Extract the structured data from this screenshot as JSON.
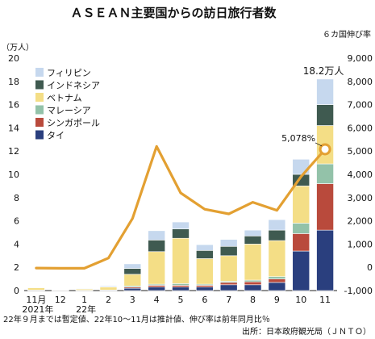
{
  "chart_data": {
    "type": "bar",
    "title": "ＡＳＥＡＮ主要国からの訪日旅行者数",
    "right_axis_title": "６カ国伸び率",
    "left_unit": "（万人）",
    "categories": [
      "11月",
      "12",
      "1",
      "2",
      "3",
      "4",
      "5",
      "6",
      "7",
      "8",
      "9",
      "10",
      "11"
    ],
    "category_sublabels": [
      "2021年",
      "",
      "22年",
      "",
      "",
      "",
      "",
      "",
      "",
      "",
      "",
      "",
      ""
    ],
    "stack_order": [
      "タイ",
      "シンガポール",
      "マレーシア",
      "ベトナム",
      "インドネシア",
      "フィリピン"
    ],
    "series": [
      {
        "name": "タイ",
        "color": "#2a3f7e",
        "values": [
          0.02,
          0.01,
          0.01,
          0.03,
          0.2,
          0.3,
          0.3,
          0.3,
          0.5,
          0.5,
          0.7,
          3.4,
          5.2
        ]
      },
      {
        "name": "シンガポール",
        "color": "#b94a3c",
        "values": [
          0.01,
          0.01,
          0.01,
          0.01,
          0.1,
          0.15,
          0.15,
          0.15,
          0.2,
          0.25,
          0.3,
          1.5,
          4.0
        ]
      },
      {
        "name": "マレーシア",
        "color": "#93c2a9",
        "values": [
          0.01,
          0.01,
          0.01,
          0.01,
          0.1,
          0.1,
          0.15,
          0.1,
          0.1,
          0.15,
          0.2,
          0.9,
          1.7
        ]
      },
      {
        "name": "ベトナム",
        "color": "#f4de86",
        "values": [
          0.2,
          0.03,
          0.1,
          0.25,
          1.0,
          2.8,
          3.9,
          2.2,
          2.2,
          3.1,
          3.1,
          3.2,
          3.3
        ]
      },
      {
        "name": "インドネシア",
        "color": "#3f5a50",
        "values": [
          0.02,
          0.02,
          0.02,
          0.03,
          0.5,
          1.0,
          0.8,
          0.7,
          0.8,
          0.7,
          0.9,
          1.0,
          1.8
        ]
      },
      {
        "name": "フィリピン",
        "color": "#c6d8ee",
        "values": [
          0.04,
          0.02,
          0.05,
          0.08,
          0.4,
          0.8,
          0.6,
          0.5,
          0.6,
          0.5,
          0.9,
          1.3,
          2.2
        ]
      }
    ],
    "line": {
      "name": "６カ国伸び率",
      "color": "#e3a032",
      "values": [
        -30,
        -40,
        -40,
        400,
        2100,
        5200,
        3200,
        2500,
        2300,
        2800,
        2450,
        3900,
        5078
      ]
    },
    "ylim_left": [
      0,
      20
    ],
    "yticks_left": [
      "0",
      "2",
      "4",
      "6",
      "8",
      "10",
      "12",
      "14",
      "16",
      "18",
      "20"
    ],
    "ylim_right": [
      -1000,
      9000
    ],
    "yticks_right": [
      "-1,000",
      "0",
      "1,000",
      "2,000",
      "3,000",
      "4,000",
      "5,000",
      "6,000",
      "7,000",
      "8,000",
      "9,000"
    ],
    "annotation_total": "18.2万人",
    "annotation_growth": "5,078%",
    "legend_position": "top-left",
    "grid": false
  },
  "footnote": "22年９月までは暫定値、22年10～11月は推計値、伸び率は前年同月比％",
  "source": "出所：日本政府観光局（ＪＮＴＯ）"
}
